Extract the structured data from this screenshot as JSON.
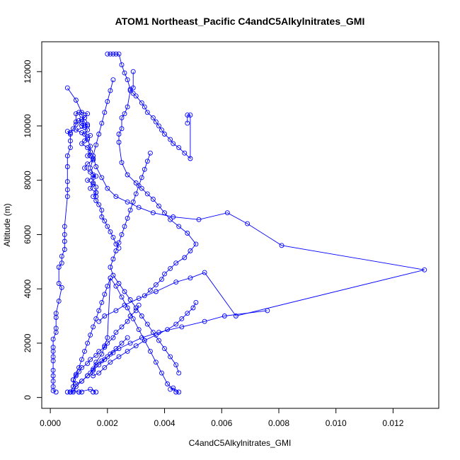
{
  "chart_data": {
    "type": "scatter",
    "title": "ATOM1 Northeast_Pacific C4andC5Alkylnitrates_GMI",
    "xlabel": "C4andC5Alkylnitrates_GMI",
    "ylabel": "Altitude (m)",
    "xlim": [
      -0.0003,
      0.0136
    ],
    "ylim": [
      -400,
      13100
    ],
    "xticks": [
      0.0,
      0.002,
      0.004,
      0.006,
      0.008,
      0.01,
      0.012
    ],
    "xtick_labels": [
      "0.000",
      "0.002",
      "0.004",
      "0.006",
      "0.008",
      "0.010",
      "0.012"
    ],
    "yticks": [
      0,
      2000,
      4000,
      6000,
      8000,
      10000,
      12000
    ],
    "ytick_labels": [
      "0",
      "2000",
      "4000",
      "6000",
      "8000",
      "10000",
      "12000"
    ],
    "grid": false,
    "legend": "none",
    "style": {
      "color": "#0000ff",
      "marker": "open-circle",
      "connected": true
    },
    "series": [
      {
        "x": [
          0.0002,
          0.0001,
          0.0001,
          0.0001,
          0.0001,
          0.0001,
          0.0001,
          0.0001,
          0.0001,
          0.0001,
          0.0001,
          0.0002,
          0.0002,
          0.0002,
          0.0002,
          0.0003,
          0.0004,
          0.0003,
          0.0003,
          0.0004,
          0.0004,
          0.0005,
          0.0005,
          0.0005,
          0.0005,
          0.0006,
          0.0006,
          0.0006,
          0.0006,
          0.0006,
          0.0007,
          0.0007,
          0.0007,
          0.0006,
          0.0007,
          0.0008,
          0.0009,
          0.0009,
          0.0009,
          0.001,
          0.0011,
          0.0012,
          0.0011,
          0.0012,
          0.0013,
          0.0012,
          0.0013,
          0.0012,
          0.0013,
          0.0014,
          0.0014,
          0.0014,
          0.0015,
          0.0014,
          0.0015,
          0.0015,
          0.0015,
          0.0016,
          0.0016,
          0.0016,
          0.0016,
          0.0017,
          0.0018,
          0.0018,
          0.0019,
          0.002,
          0.0021,
          0.0022,
          0.0023,
          0.0024
        ],
        "y": [
          200,
          250,
          400,
          600,
          800,
          1000,
          1350,
          1500,
          1700,
          1850,
          2150,
          2400,
          2550,
          2950,
          3100,
          3550,
          4050,
          4200,
          4800,
          4950,
          5200,
          5450,
          5750,
          6000,
          6300,
          7400,
          7650,
          7950,
          8500,
          8900,
          9200,
          9450,
          9700,
          9800,
          9750,
          9900,
          10050,
          10150,
          10450,
          10500,
          10400,
          10300,
          10250,
          10150,
          10000,
          9950,
          9850,
          9700,
          9500,
          9250,
          9050,
          8900,
          8800,
          8450,
          8200,
          8100,
          7900,
          7750,
          7550,
          7400,
          7250,
          7100,
          6900,
          6650,
          6500,
          6300,
          6100,
          5900,
          5650,
          5500
        ]
      },
      {
        "x": [
          0.0006,
          0.0009,
          0.0011,
          0.0013,
          0.0012,
          0.001,
          0.0011,
          0.0013,
          0.0011,
          0.0012,
          0.0009,
          0.0011,
          0.0014,
          0.0013,
          0.0012,
          0.0011,
          0.0013,
          0.0014,
          0.0013,
          0.0015,
          0.0013,
          0.0012,
          0.0014,
          0.0016,
          0.0013,
          0.0015,
          0.0014,
          0.0016,
          0.0015
        ],
        "y": [
          11400,
          10950,
          10500,
          10450,
          10300,
          10200,
          10100,
          10050,
          10000,
          9950,
          9850,
          9750,
          9650,
          9550,
          9450,
          9350,
          9200,
          9050,
          8900,
          8750,
          8600,
          8450,
          8300,
          8150,
          8000,
          7850,
          7700,
          7550,
          7400
        ]
      },
      {
        "x": [
          0.002,
          0.0021,
          0.0022,
          0.0023,
          0.0024,
          0.0025,
          0.0026,
          0.0027,
          0.0028,
          0.0029,
          0.003,
          0.0032,
          0.0033,
          0.0034,
          0.0036,
          0.0037,
          0.0038,
          0.0039,
          0.004,
          0.0042,
          0.0043,
          0.0045,
          0.0047,
          0.0049,
          0.0049,
          0.0048,
          0.0048
        ],
        "y": [
          12650,
          12650,
          12650,
          12650,
          12650,
          12250,
          11950,
          11700,
          11350,
          11200,
          11100,
          10850,
          10700,
          10500,
          10300,
          10150,
          10000,
          9850,
          9700,
          9500,
          9350,
          9200,
          9000,
          8800,
          10400,
          10400,
          10100
        ]
      },
      {
        "x": [
          0.0022,
          0.0021,
          0.002,
          0.0019,
          0.0018,
          0.0017,
          0.0016,
          0.0015,
          0.0016,
          0.0018,
          0.002,
          0.0023,
          0.0027,
          0.0031,
          0.0036,
          0.0043,
          0.0052,
          0.0062,
          0.0069,
          0.0081,
          0.0131,
          0.0065,
          0.0054,
          0.0049,
          0.0044,
          0.0037,
          0.0031,
          0.0026,
          0.0023,
          0.0019,
          0.0017
        ],
        "y": [
          11700,
          11300,
          10900,
          10500,
          10100,
          9700,
          9300,
          8900,
          8500,
          8100,
          7700,
          7400,
          7200,
          7000,
          6800,
          6650,
          6550,
          6800,
          6400,
          5600,
          4700,
          3000,
          4600,
          4400,
          4250,
          3900,
          3650,
          3400,
          3200,
          3000,
          2800
        ]
      },
      {
        "x": [
          0.0029,
          0.0029,
          0.0028,
          0.0027,
          0.0026,
          0.0025,
          0.0025,
          0.0024,
          0.0024,
          0.0025,
          0.0027,
          0.003,
          0.0032,
          0.0034,
          0.0036,
          0.0038,
          0.004,
          0.0042,
          0.0045,
          0.0048,
          0.0051,
          0.0049,
          0.0047,
          0.0044,
          0.0042,
          0.004,
          0.0039,
          0.0037,
          0.0035,
          0.0033
        ],
        "y": [
          12000,
          11400,
          11300,
          10700,
          10450,
          10300,
          9900,
          9700,
          9400,
          8650,
          8200,
          7900,
          7700,
          7500,
          7300,
          7050,
          6800,
          6550,
          6300,
          6050,
          5650,
          5400,
          5150,
          4950,
          4750,
          4550,
          4350,
          4150,
          3950,
          3750
        ]
      },
      {
        "x": [
          0.0035,
          0.0034,
          0.0033,
          0.0032,
          0.0031,
          0.003,
          0.0029,
          0.0028,
          0.0027,
          0.0026,
          0.0025,
          0.0024,
          0.0023,
          0.0022,
          0.0021,
          0.0022,
          0.0024,
          0.0026,
          0.0028,
          0.003,
          0.0032,
          0.0034,
          0.0036,
          0.0038,
          0.004,
          0.0042,
          0.0044,
          0.0045
        ],
        "y": [
          9000,
          8700,
          8400,
          8100,
          7800,
          7500,
          7200,
          6900,
          6600,
          6300,
          6000,
          5700,
          5400,
          5100,
          4800,
          4500,
          4200,
          3900,
          3600,
          3300,
          3000,
          2700,
          2400,
          2100,
          1800,
          1500,
          1200,
          900
        ]
      },
      {
        "x": [
          0.0021,
          0.002,
          0.0019,
          0.0018,
          0.0017,
          0.0016,
          0.0015,
          0.0014,
          0.0013,
          0.0012,
          0.0011,
          0.001,
          0.0009,
          0.0008,
          0.0008,
          0.0007,
          0.0006,
          0.0007,
          0.0007,
          0.0008,
          0.001,
          0.0011,
          0.001,
          0.0014,
          0.0016,
          0.0015
        ],
        "y": [
          4400,
          4100,
          3800,
          3500,
          3200,
          2900,
          2600,
          2300,
          2000,
          1700,
          1400,
          1100,
          850,
          650,
          400,
          200,
          200,
          200,
          200,
          250,
          200,
          200,
          200,
          300,
          200,
          200
        ]
      },
      {
        "x": [
          0.0042,
          0.0043,
          0.0045,
          0.0044,
          0.0041,
          0.0039,
          0.0037,
          0.0035,
          0.0033,
          0.0031,
          0.0029,
          0.0027,
          0.0025,
          0.0023,
          0.0021,
          0.002,
          0.0019,
          0.0018,
          0.0016,
          0.0015,
          0.0013,
          0.0011,
          0.0009,
          0.0008
        ],
        "y": [
          300,
          350,
          200,
          200,
          500,
          900,
          1300,
          1700,
          2100,
          2500,
          2900,
          3300,
          3700,
          4100,
          4400,
          2200,
          1900,
          1600,
          1300,
          1000,
          800,
          600,
          400,
          200
        ]
      },
      {
        "x": [
          0.0076,
          0.0061,
          0.0054,
          0.0046,
          0.0038,
          0.0032,
          0.0028,
          0.0024,
          0.0022,
          0.002,
          0.0018,
          0.0016,
          0.0015,
          0.0014,
          0.0015,
          0.0017,
          0.0019,
          0.0021,
          0.0024,
          0.0027,
          0.003,
          0.0033,
          0.0037,
          0.0041,
          0.0044,
          0.0046,
          0.0048,
          0.005,
          0.0051
        ],
        "y": [
          3200,
          3000,
          2800,
          2600,
          2400,
          2200,
          2000,
          1800,
          1650,
          1500,
          1350,
          1200,
          1050,
          900,
          800,
          900,
          1100,
          1300,
          1500,
          1700,
          1900,
          2100,
          2300,
          2500,
          2700,
          2900,
          3100,
          3300,
          3500
        ]
      },
      {
        "x": [
          0.0031,
          0.003,
          0.0028,
          0.0027,
          0.0025,
          0.0023,
          0.0022,
          0.002,
          0.0019,
          0.0017,
          0.0016,
          0.0014,
          0.0013,
          0.0011,
          0.001,
          0.0009,
          0.0008,
          0.0009,
          0.0011,
          0.0013,
          0.0015,
          0.0017,
          0.0019,
          0.0021,
          0.0023,
          0.0025,
          0.0027
        ],
        "y": [
          3400,
          3200,
          3000,
          2800,
          2600,
          2400,
          2200,
          2000,
          1850,
          1700,
          1550,
          1400,
          1250,
          1100,
          950,
          800,
          650,
          500,
          600,
          800,
          1000,
          1200,
          1400,
          1600,
          1800,
          2000,
          2200
        ]
      }
    ]
  }
}
